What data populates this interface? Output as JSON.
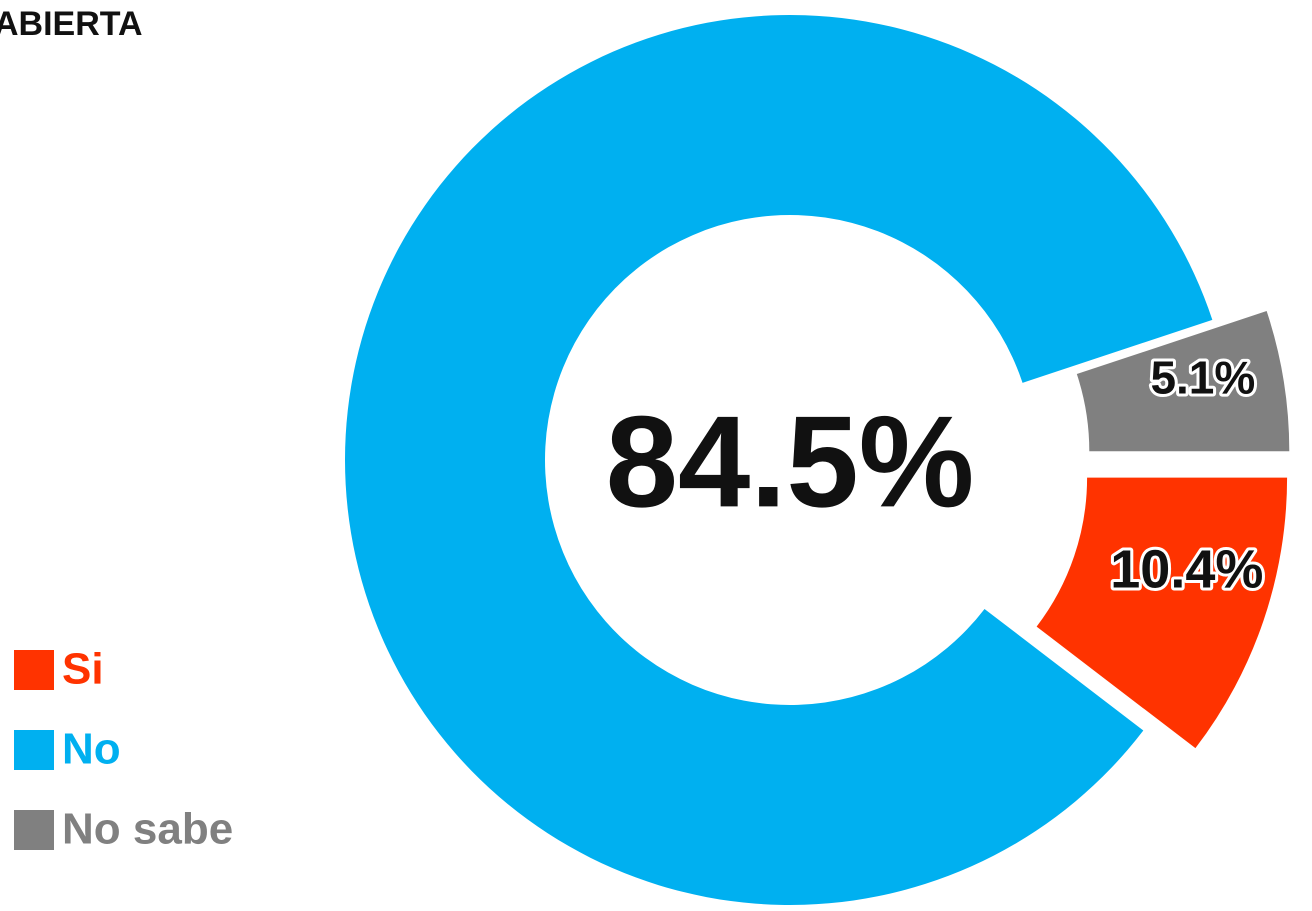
{
  "chart_data": {
    "type": "donut",
    "title": "ABIERTA",
    "categories": [
      "Si",
      "No",
      "No sabe"
    ],
    "values": [
      10.4,
      84.5,
      5.1
    ],
    "value_labels": [
      "10.4%",
      "84.5%",
      "5.1%"
    ],
    "colors": [
      "#ff3300",
      "#00b0f0",
      "#808080"
    ]
  }
}
